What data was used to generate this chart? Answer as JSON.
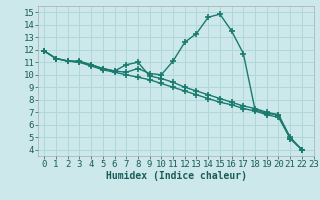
{
  "line1_x": [
    0,
    1,
    2,
    3,
    4,
    5,
    6,
    7,
    8,
    9,
    10,
    11,
    12,
    13,
    14,
    15,
    16,
    17,
    18,
    19,
    20,
    21,
    22
  ],
  "line1_y": [
    11.9,
    11.3,
    11.1,
    11.1,
    10.8,
    10.5,
    10.3,
    10.2,
    10.5,
    10.1,
    10.0,
    11.1,
    12.6,
    13.3,
    14.6,
    14.85,
    13.5,
    11.7,
    7.2,
    6.9,
    6.8,
    5.0,
    4.0
  ],
  "line2_x": [
    0,
    1,
    2,
    3,
    4,
    5,
    6,
    7,
    8,
    9,
    10,
    11,
    12,
    13,
    14,
    15,
    16,
    17,
    18,
    19,
    20,
    21,
    22
  ],
  "line2_y": [
    11.9,
    11.3,
    11.1,
    11.0,
    10.8,
    10.5,
    10.3,
    10.8,
    11.0,
    9.9,
    9.7,
    9.4,
    9.0,
    8.7,
    8.4,
    8.1,
    7.8,
    7.5,
    7.3,
    7.0,
    6.8,
    4.9,
    4.0
  ],
  "line3_x": [
    0,
    1,
    2,
    3,
    4,
    5,
    6,
    7,
    8,
    9,
    10,
    11,
    12,
    13,
    14,
    15,
    16,
    17,
    18,
    19,
    20,
    21,
    22
  ],
  "line3_y": [
    11.9,
    11.3,
    11.1,
    11.0,
    10.7,
    10.4,
    10.2,
    10.0,
    9.8,
    9.6,
    9.3,
    9.0,
    8.7,
    8.4,
    8.1,
    7.8,
    7.6,
    7.3,
    7.1,
    6.8,
    6.6,
    4.9,
    4.0
  ],
  "line_color": "#1a7a6e",
  "bg_color": "#cce8ea",
  "grid_color": "#b0d8da",
  "xlabel": "Humidex (Indice chaleur)",
  "xlim": [
    -0.5,
    23.0
  ],
  "ylim": [
    3.5,
    15.5
  ],
  "xticks": [
    0,
    1,
    2,
    3,
    4,
    5,
    6,
    7,
    8,
    9,
    10,
    11,
    12,
    13,
    14,
    15,
    16,
    17,
    18,
    19,
    20,
    21,
    22,
    23
  ],
  "yticks": [
    4,
    5,
    6,
    7,
    8,
    9,
    10,
    11,
    12,
    13,
    14,
    15
  ],
  "marker": "+",
  "markersize": 4,
  "linewidth": 1.0,
  "tick_fontsize": 6.5,
  "xlabel_fontsize": 7.0
}
